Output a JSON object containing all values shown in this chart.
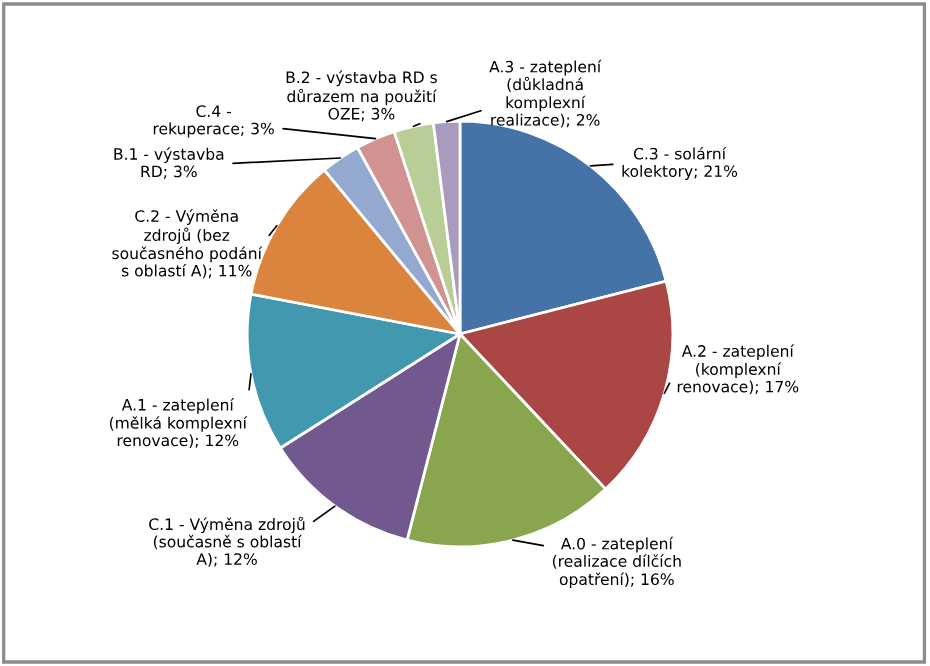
{
  "chart_data": {
    "type": "pie",
    "categories": [
      "C.3 - solární kolektory",
      "A.2 - zateplení (komplexní renovace)",
      "A.0 - zateplení (realizace dílčích opatření)",
      "C.1 - Výměna zdrojů (současně s oblastí A)",
      "A.1 - zateplení (mělká komplexní renovace)",
      "C.2 - Výměna zdrojů (bez současného podání s oblastí A)",
      "B.1 - výstavba RD",
      "C.4 - rekuperace",
      "B.2 - výstavba RD s důrazem na použití OZE",
      "A.3 - zateplení (důkladná komplexní realizace)"
    ],
    "values": [
      21,
      17,
      16,
      12,
      12,
      11,
      3,
      3,
      3,
      2
    ],
    "value_labels": [
      "21%",
      "17%",
      "16%",
      "12%",
      "12%",
      "11%",
      "3%",
      "3%",
      "3%",
      "2%"
    ],
    "colors": [
      "#4572a7",
      "#aa4643",
      "#89a54e",
      "#71588f",
      "#4198af",
      "#db843d",
      "#93a9cf",
      "#d19392",
      "#b9cd96",
      "#a99bbd"
    ],
    "data_labels": true,
    "legend": false
  }
}
